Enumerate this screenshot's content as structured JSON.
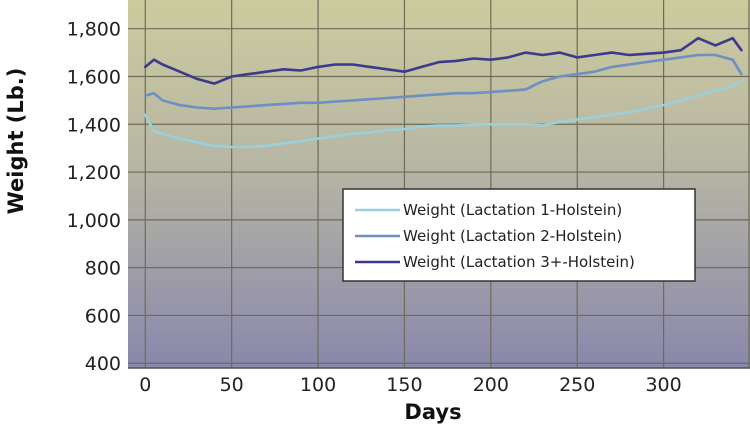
{
  "chart_data": {
    "type": "line",
    "title": "",
    "xlabel": "Days",
    "ylabel": "Weight (Lb.)",
    "xlim": [
      -10,
      350
    ],
    "ylim": [
      380,
      1920
    ],
    "x_ticks": [
      0,
      50,
      100,
      150,
      200,
      250,
      300
    ],
    "y_ticks": [
      400,
      600,
      800,
      1000,
      1200,
      1400,
      1600,
      1800
    ],
    "y_tick_labels": [
      "400",
      "600",
      "800",
      "1,000",
      "1,200",
      "1,400",
      "1,600",
      "1,800"
    ],
    "grid": true,
    "legend_position": "center-right",
    "series": [
      {
        "name": "Weight (Lactation 1-Holstein)",
        "color": "#9ad0dc",
        "x": [
          0,
          5,
          10,
          20,
          30,
          40,
          50,
          60,
          70,
          80,
          90,
          100,
          110,
          120,
          130,
          140,
          150,
          160,
          170,
          180,
          190,
          200,
          210,
          220,
          230,
          240,
          250,
          260,
          270,
          280,
          290,
          300,
          310,
          320,
          330,
          340,
          345
        ],
        "y": [
          1440,
          1370,
          1360,
          1340,
          1325,
          1310,
          1305,
          1305,
          1310,
          1320,
          1330,
          1340,
          1350,
          1360,
          1365,
          1375,
          1380,
          1390,
          1395,
          1395,
          1398,
          1400,
          1400,
          1400,
          1395,
          1410,
          1420,
          1430,
          1440,
          1450,
          1465,
          1480,
          1500,
          1520,
          1540,
          1560,
          1580
        ]
      },
      {
        "name": "Weight (Lactation 2-Holstein)",
        "color": "#6d8fc2",
        "x": [
          0,
          5,
          10,
          20,
          30,
          40,
          50,
          60,
          70,
          80,
          90,
          100,
          110,
          120,
          130,
          140,
          150,
          160,
          170,
          180,
          190,
          200,
          210,
          220,
          230,
          240,
          250,
          260,
          270,
          280,
          290,
          300,
          310,
          320,
          330,
          340,
          345
        ],
        "y": [
          1520,
          1530,
          1500,
          1480,
          1470,
          1465,
          1470,
          1475,
          1480,
          1485,
          1490,
          1490,
          1495,
          1500,
          1505,
          1510,
          1515,
          1520,
          1525,
          1530,
          1530,
          1535,
          1540,
          1545,
          1580,
          1600,
          1610,
          1620,
          1640,
          1650,
          1660,
          1670,
          1680,
          1690,
          1690,
          1670,
          1610
        ]
      },
      {
        "name": "Weight (Lactation 3+-Holstein)",
        "color": "#3b3a8c",
        "x": [
          0,
          5,
          10,
          20,
          30,
          40,
          50,
          60,
          70,
          80,
          90,
          100,
          110,
          120,
          130,
          140,
          150,
          160,
          170,
          180,
          190,
          200,
          210,
          220,
          230,
          240,
          250,
          260,
          270,
          280,
          290,
          300,
          310,
          320,
          330,
          340,
          345
        ],
        "y": [
          1640,
          1670,
          1650,
          1620,
          1590,
          1570,
          1600,
          1610,
          1620,
          1630,
          1625,
          1640,
          1650,
          1650,
          1640,
          1630,
          1620,
          1640,
          1660,
          1665,
          1675,
          1670,
          1680,
          1700,
          1690,
          1700,
          1680,
          1690,
          1700,
          1690,
          1695,
          1700,
          1710,
          1760,
          1730,
          1760,
          1710
        ]
      }
    ]
  }
}
